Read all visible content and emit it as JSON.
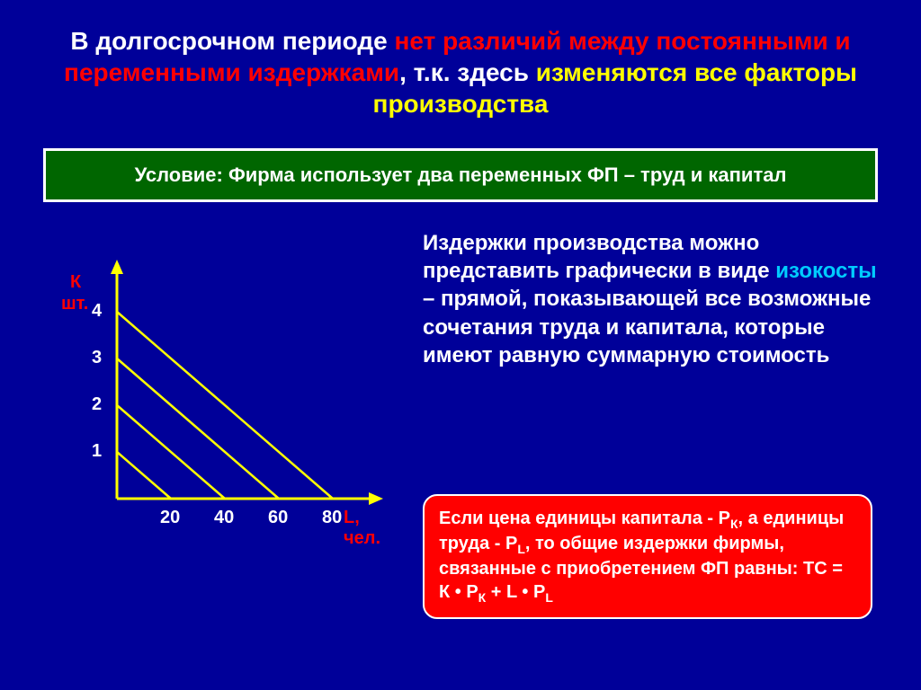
{
  "title": {
    "part1": "В долгосрочном периоде ",
    "highlight1": "нет различий между постоянными и переменными издержками",
    "part2": ", т.к. здесь ",
    "highlight2": "изменяются все факторы производства"
  },
  "condition": "Условие: Фирма использует два переменных ФП – труд и капитал",
  "explanation": {
    "part1": "Издержки производства можно представить графически в виде ",
    "keyword": "изокосты",
    "part2": " – прямой, показывающей все возможные сочетания труда и капитала, которые имеют равную суммарную стоимость"
  },
  "formula": {
    "line1a": "Если цена единицы капитала - Р",
    "sub1": "К",
    "line1b": ", а единицы труда - Р",
    "sub2": "L",
    "line1c": ", то общие издержки фирмы, связанные с приобретением ФП равны: ТС = К • Р",
    "sub3": "К",
    "line1d": " + L • Р",
    "sub4": "L"
  },
  "chart": {
    "y_label1": "К",
    "y_label2": "шт.",
    "x_label": "L, чел.",
    "y_ticks": [
      "1",
      "2",
      "3",
      "4"
    ],
    "y_tick_values": [
      1,
      2,
      3,
      4
    ],
    "x_ticks": [
      "20",
      "40",
      "60",
      "80"
    ],
    "x_tick_values": [
      20,
      40,
      60,
      80
    ],
    "lines": [
      {
        "k": 1,
        "l": 20
      },
      {
        "k": 2,
        "l": 40
      },
      {
        "k": 3,
        "l": 60
      },
      {
        "k": 4,
        "l": 80
      }
    ],
    "axis_color": "#ffff00",
    "line_color": "#ffff00",
    "origin_x": 70,
    "origin_y": 270,
    "x_scale": 3.0,
    "y_scale": 52,
    "y_axis_top": 10,
    "x_axis_right": 360,
    "line_width": 2.5
  },
  "colors": {
    "background": "#000099",
    "title_white": "#ffffff",
    "title_red": "#ff0000",
    "title_yellow": "#ffff00",
    "condition_bg": "#006600",
    "keyword": "#00ccff",
    "formula_bg": "#ff0000"
  }
}
